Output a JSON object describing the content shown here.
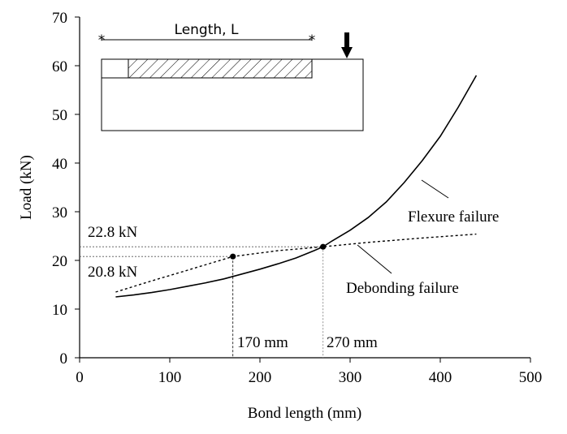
{
  "chart_data": {
    "type": "line",
    "xlabel": "Bond length (mm)",
    "ylabel": "Load (kN)",
    "xlim": [
      0,
      500
    ],
    "ylim": [
      0,
      70
    ],
    "xticks": [
      0,
      100,
      200,
      300,
      400,
      500
    ],
    "yticks": [
      0,
      10,
      20,
      30,
      40,
      50,
      60,
      70
    ],
    "grid": false,
    "series": [
      {
        "name": "Flexure failure",
        "style": "solid",
        "x": [
          40,
          60,
          80,
          100,
          120,
          140,
          160,
          180,
          200,
          220,
          240,
          260,
          270,
          280,
          300,
          320,
          340,
          360,
          380,
          400,
          420,
          440
        ],
        "y": [
          12.5,
          12.9,
          13.4,
          14.0,
          14.7,
          15.4,
          16.2,
          17.2,
          18.2,
          19.3,
          20.5,
          22.0,
          22.8,
          24.0,
          26.2,
          28.8,
          32.0,
          36.0,
          40.5,
          45.5,
          51.5,
          58.0
        ]
      },
      {
        "name": "Debonding failure",
        "style": "dotted",
        "x": [
          40,
          80,
          120,
          170,
          220,
          270,
          320,
          380,
          440
        ],
        "y": [
          13.5,
          15.8,
          18.0,
          20.8,
          22.0,
          22.8,
          23.7,
          24.6,
          25.4
        ]
      }
    ],
    "points": [
      {
        "x": 170,
        "y": 20.8,
        "label": "170 mm",
        "load_label": "20.8 kN"
      },
      {
        "x": 270,
        "y": 22.8,
        "label": "270 mm",
        "load_label": "22.8 kN"
      }
    ],
    "annotations": {
      "flexure": "Flexure failure",
      "debonding": "Debonding failure"
    },
    "inset": {
      "dimension_label": "Length, L"
    }
  }
}
